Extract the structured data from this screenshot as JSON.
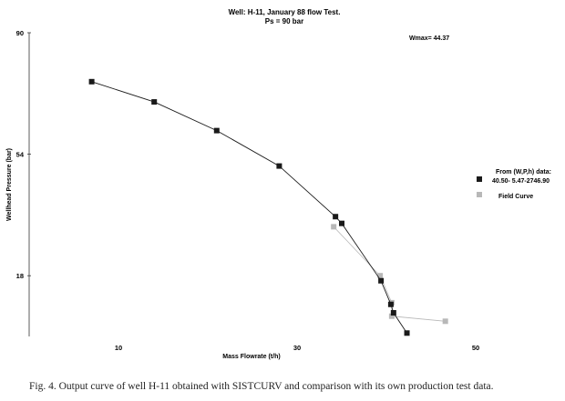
{
  "chart_data": {
    "type": "line",
    "title": "Well: H-11, January 88 flow Test.",
    "subtitle": "Ps = 90 bar",
    "annotation": "Wmax= 44.37",
    "xlabel": "Mass Flowrate (t/h)",
    "ylabel": "Wellhead Pressure (bar)",
    "xlim": [
      0,
      50
    ],
    "ylim": [
      0,
      90
    ],
    "xticks": [
      10,
      30,
      50
    ],
    "yticks": [
      18,
      54,
      90
    ],
    "grid": false,
    "legend_position": "right",
    "series": [
      {
        "name": "From (W,P,h) data: 40.50- 5.47-2746.90",
        "color": "#1a1a1a",
        "marker": "square",
        "points": [
          [
            7.0,
            75.5
          ],
          [
            14.0,
            69.5
          ],
          [
            21.0,
            61.0
          ],
          [
            28.0,
            50.5
          ],
          [
            34.3,
            35.5
          ],
          [
            35.0,
            33.5
          ],
          [
            39.4,
            16.5
          ],
          [
            40.5,
            9.5
          ],
          [
            40.8,
            7.0
          ],
          [
            42.3,
            1.0
          ]
        ]
      },
      {
        "name": "Field Curve",
        "color": "#b8b8b8",
        "marker": "square",
        "points": [
          [
            34.1,
            32.5
          ],
          [
            39.3,
            18.0
          ],
          [
            40.6,
            10.0
          ],
          [
            40.6,
            6.0
          ],
          [
            46.6,
            4.5
          ]
        ]
      }
    ]
  },
  "caption": "Fig.  4.  Output curve of well H-11 obtained with SISTCURV and comparison with its own production test data."
}
